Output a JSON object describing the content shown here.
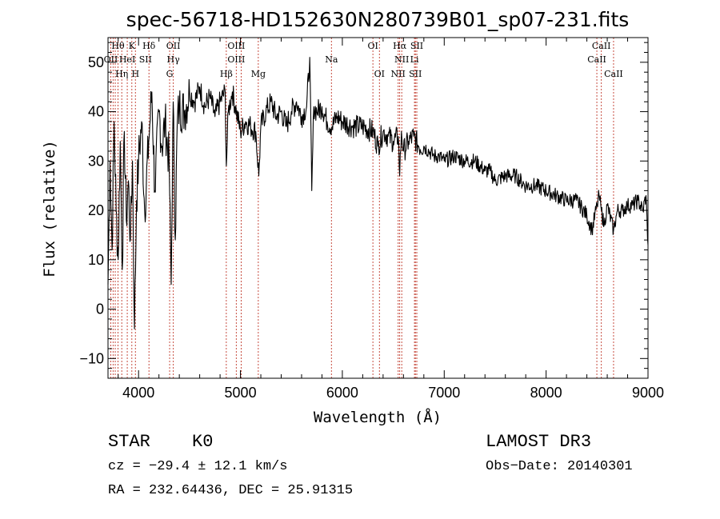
{
  "chart_data": {
    "type": "line",
    "title": "spec-56718-HD152630N280739B01_sp07-231.fits",
    "xlabel": "Wavelength (Å)",
    "ylabel": "Flux (relative)",
    "xlim": [
      3700,
      9000
    ],
    "ylim": [
      -14,
      55
    ],
    "xticks": [
      4000,
      5000,
      6000,
      7000,
      8000,
      9000
    ],
    "yticks": [
      -10,
      0,
      10,
      20,
      30,
      40,
      50
    ],
    "series": [
      {
        "name": "flux",
        "x": [
          3700,
          3720,
          3740,
          3760,
          3780,
          3800,
          3820,
          3840,
          3860,
          3880,
          3900,
          3920,
          3940,
          3960,
          3980,
          4000,
          4030,
          4060,
          4100,
          4130,
          4160,
          4200,
          4230,
          4260,
          4300,
          4320,
          4340,
          4360,
          4380,
          4400,
          4450,
          4500,
          4550,
          4600,
          4650,
          4700,
          4750,
          4800,
          4850,
          4861,
          4880,
          4920,
          4960,
          5000,
          5050,
          5100,
          5150,
          5180,
          5200,
          5250,
          5300,
          5350,
          5400,
          5450,
          5500,
          5550,
          5600,
          5650,
          5680,
          5700,
          5720,
          5750,
          5800,
          5850,
          5900,
          5950,
          6000,
          6100,
          6200,
          6300,
          6350,
          6400,
          6450,
          6500,
          6550,
          6563,
          6580,
          6600,
          6650,
          6700,
          6750,
          6800,
          6850,
          6900,
          6950,
          7000,
          7100,
          7200,
          7300,
          7400,
          7450,
          7500,
          7600,
          7700,
          7800,
          7900,
          8000,
          8100,
          8200,
          8300,
          8400,
          8450,
          8500,
          8520,
          8542,
          8570,
          8600,
          8662,
          8700,
          8750,
          8800,
          8850,
          8900,
          8950,
          8980,
          9000
        ],
        "y": [
          5,
          30,
          12,
          38,
          20,
          10,
          34,
          8,
          36,
          18,
          26,
          14,
          30,
          -4,
          22,
          30,
          38,
          20,
          34,
          44,
          24,
          40,
          33,
          38,
          30,
          5,
          42,
          14,
          38,
          41,
          40,
          44,
          42,
          45,
          41,
          43,
          39,
          42,
          44,
          29,
          40,
          44,
          40,
          36,
          38,
          37,
          36,
          27,
          37,
          40,
          42,
          39,
          40,
          37,
          40,
          42,
          39,
          41,
          51,
          24,
          41,
          40,
          41,
          38,
          37,
          39,
          38,
          37,
          37,
          36,
          33,
          36,
          35,
          34,
          35,
          27,
          36,
          32,
          34,
          35,
          33,
          33,
          32,
          31,
          31,
          30,
          31,
          30,
          30,
          28,
          28,
          26,
          27,
          27,
          25,
          25,
          24,
          23,
          22,
          22,
          19,
          16,
          21,
          23,
          20,
          17,
          21,
          16,
          20,
          20,
          21,
          21,
          22,
          20,
          23,
          13
        ]
      }
    ],
    "line_labels": [
      {
        "text": "Hθ",
        "x": 3798,
        "row": 1
      },
      {
        "text": "K",
        "x": 3934,
        "row": 1
      },
      {
        "text": "Hδ",
        "x": 4102,
        "row": 1
      },
      {
        "text": "OII",
        "x": 4341,
        "row": 1
      },
      {
        "text": "OIII",
        "x": 4959,
        "row": 1
      },
      {
        "text": "OI",
        "x": 6300,
        "row": 1
      },
      {
        "text": "Hα",
        "x": 6563,
        "row": 1
      },
      {
        "text": "SII",
        "x": 6731,
        "row": 1
      },
      {
        "text": "CaII",
        "x": 8542,
        "row": 1
      },
      {
        "text": "OII",
        "x": 3727,
        "row": 2
      },
      {
        "text": "HeI",
        "x": 3889,
        "row": 2
      },
      {
        "text": "SII",
        "x": 4068,
        "row": 2
      },
      {
        "text": "Hγ",
        "x": 4341,
        "row": 2
      },
      {
        "text": "OIII",
        "x": 4959,
        "row": 2
      },
      {
        "text": "Na",
        "x": 5893,
        "row": 2
      },
      {
        "text": "NII",
        "x": 6583,
        "row": 2
      },
      {
        "text": "Li",
        "x": 6708,
        "row": 2
      },
      {
        "text": "CaII",
        "x": 8498,
        "row": 2
      },
      {
        "text": "Hη",
        "x": 3835,
        "row": 3
      },
      {
        "text": "H",
        "x": 3969,
        "row": 3
      },
      {
        "text": "G",
        "x": 4305,
        "row": 3
      },
      {
        "text": "Hβ",
        "x": 4861,
        "row": 3
      },
      {
        "text": "Mg",
        "x": 5175,
        "row": 3
      },
      {
        "text": "OI",
        "x": 6364,
        "row": 3
      },
      {
        "text": "NII",
        "x": 6548,
        "row": 3
      },
      {
        "text": "SII",
        "x": 6717,
        "row": 3
      },
      {
        "text": "CaII",
        "x": 8662,
        "row": 3
      }
    ],
    "line_positions": [
      3727,
      3750,
      3771,
      3798,
      3835,
      3889,
      3934,
      3969,
      4102,
      4305,
      4341,
      4861,
      4959,
      5007,
      5175,
      5893,
      6300,
      6364,
      6548,
      6563,
      6583,
      6708,
      6717,
      6731,
      8498,
      8542,
      8662
    ]
  },
  "info": {
    "class_label": "STAR",
    "subclass_label": "K0",
    "survey_label": "LAMOST DR3",
    "cz_text": "cz = −29.4 ± 12.1 km/s",
    "obs_date_text": "Obs−Date: 20140301",
    "coords_text": "RA = 232.64436, DEC =  25.91315"
  }
}
